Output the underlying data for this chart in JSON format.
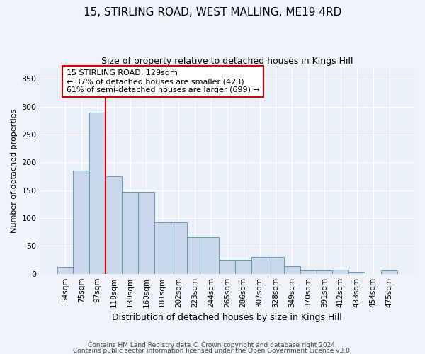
{
  "title": "15, STIRLING ROAD, WEST MALLING, ME19 4RD",
  "subtitle": "Size of property relative to detached houses in Kings Hill",
  "xlabel": "Distribution of detached houses by size in Kings Hill",
  "ylabel": "Number of detached properties",
  "categories": [
    "54sqm",
    "75sqm",
    "97sqm",
    "118sqm",
    "139sqm",
    "160sqm",
    "181sqm",
    "202sqm",
    "223sqm",
    "244sqm",
    "265sqm",
    "286sqm",
    "307sqm",
    "328sqm",
    "349sqm",
    "370sqm",
    "391sqm",
    "412sqm",
    "433sqm",
    "454sqm",
    "475sqm"
  ],
  "values": [
    12,
    185,
    290,
    175,
    147,
    147,
    92,
    92,
    66,
    66,
    25,
    25,
    30,
    30,
    13,
    6,
    6,
    7,
    3,
    0,
    6
  ],
  "bar_color": "#c8d8ea",
  "bar_edge_color": "#6699bb",
  "vline_color": "#cc0000",
  "annotation_text": "15 STIRLING ROAD: 129sqm\n← 37% of detached houses are smaller (423)\n61% of semi-detached houses are larger (699) →",
  "annotation_box_color": "white",
  "annotation_box_edge": "#cc0000",
  "ylim": [
    0,
    370
  ],
  "yticks": [
    0,
    50,
    100,
    150,
    200,
    250,
    300,
    350
  ],
  "footer1": "Contains HM Land Registry data © Crown copyright and database right 2024.",
  "footer2": "Contains public sector information licensed under the Open Government Licence v3.0.",
  "bg_color": "#f0f4fa",
  "plot_bg_color": "#eaf0f8"
}
